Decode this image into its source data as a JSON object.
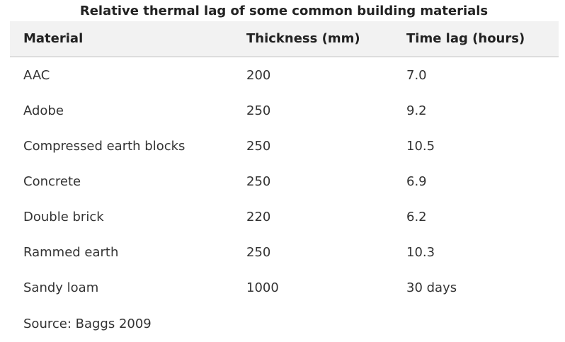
{
  "caption": "Relative thermal lag of some common building materials",
  "table": {
    "headers": [
      "Material",
      "Thickness (mm)",
      "Time lag (hours)"
    ],
    "rows": [
      [
        "AAC",
        "200",
        "7.0"
      ],
      [
        "Adobe",
        "250",
        "9.2"
      ],
      [
        "Compressed earth blocks",
        "250",
        "10.5"
      ],
      [
        "Concrete",
        "250",
        "6.9"
      ],
      [
        "Double brick",
        "220",
        "6.2"
      ],
      [
        "Rammed earth",
        "250",
        "10.3"
      ],
      [
        "Sandy loam",
        "1000",
        "30 days"
      ]
    ]
  },
  "source": "Source: Baggs 2009"
}
